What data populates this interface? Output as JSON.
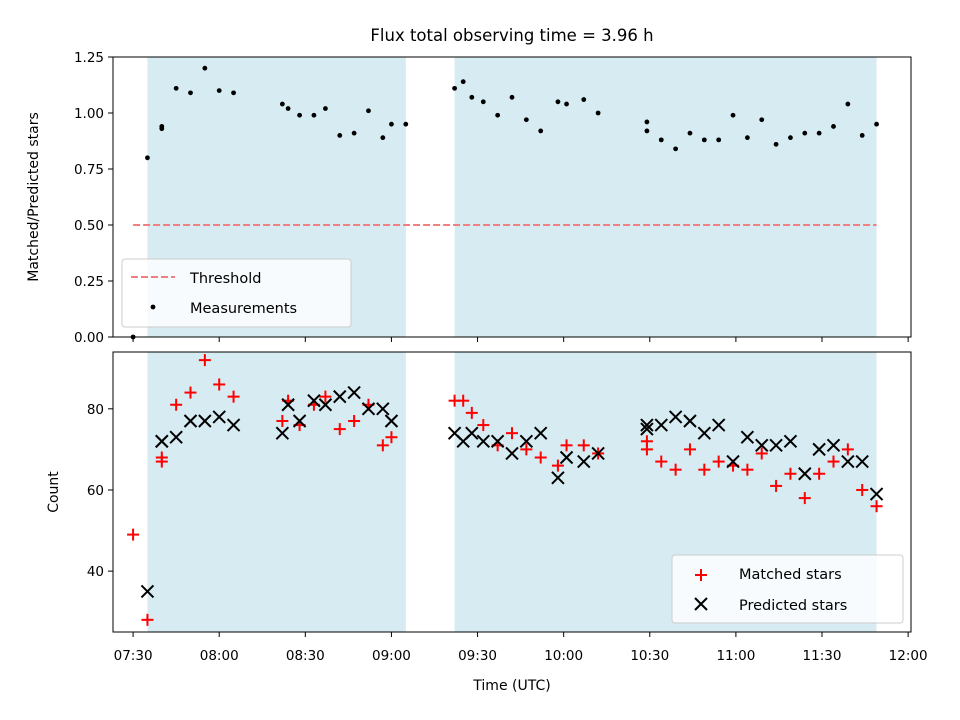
{
  "title": "Flux total observing time = 3.96 h",
  "chart_data": [
    {
      "type": "scatter",
      "panel": "top",
      "ylabel": "Matched/Predicted stars",
      "ylim": [
        0,
        1.25
      ],
      "yticks": [
        "0.00",
        "0.25",
        "0.50",
        "0.75",
        "1.00",
        "1.25"
      ],
      "ytick_values": [
        0,
        0.25,
        0.5,
        0.75,
        1.0,
        1.25
      ],
      "xlim": [
        "07:23",
        "12:01"
      ],
      "shaded_intervals": [
        [
          "07:35",
          "09:05"
        ],
        [
          "09:22",
          "11:49"
        ]
      ],
      "threshold": {
        "name": "Threshold",
        "value": 0.5,
        "x_start": "07:30",
        "x_end": "11:49",
        "color": "#f08080",
        "style": "dashed"
      },
      "series": [
        {
          "name": "Measurements",
          "marker": "dot",
          "color": "#000000",
          "x": [
            "07:30",
            "07:35",
            "07:40",
            "07:40",
            "07:45",
            "07:50",
            "07:55",
            "08:00",
            "08:05",
            "08:22",
            "08:24",
            "08:28",
            "08:33",
            "08:37",
            "08:42",
            "08:47",
            "08:52",
            "08:57",
            "09:00",
            "09:05",
            "09:22",
            "09:25",
            "09:28",
            "09:32",
            "09:37",
            "09:42",
            "09:47",
            "09:52",
            "09:58",
            "10:01",
            "10:07",
            "10:12",
            "10:29",
            "10:29",
            "10:34",
            "10:39",
            "10:44",
            "10:49",
            "10:54",
            "10:59",
            "11:04",
            "11:09",
            "11:14",
            "11:19",
            "11:24",
            "11:29",
            "11:34",
            "11:39",
            "11:44",
            "11:49"
          ],
          "y": [
            0.0,
            0.8,
            0.93,
            0.94,
            1.11,
            1.09,
            1.2,
            1.1,
            1.09,
            1.04,
            1.02,
            0.99,
            0.99,
            1.02,
            0.9,
            0.91,
            1.01,
            0.89,
            0.95,
            0.95,
            1.11,
            1.14,
            1.07,
            1.05,
            0.99,
            1.07,
            0.97,
            0.92,
            1.05,
            1.04,
            1.06,
            1.0,
            0.96,
            0.92,
            0.88,
            0.84,
            0.91,
            0.88,
            0.88,
            0.99,
            0.89,
            0.97,
            0.86,
            0.89,
            0.91,
            0.91,
            0.94,
            1.04,
            0.9,
            0.95
          ]
        }
      ],
      "legend": {
        "position": "lower-left",
        "entries": [
          "Threshold",
          "Measurements"
        ]
      }
    },
    {
      "type": "scatter",
      "panel": "bottom",
      "xlabel": "Time (UTC)",
      "ylabel": "Count",
      "ylim": [
        25,
        94
      ],
      "yticks": [
        "40",
        "60",
        "80"
      ],
      "ytick_values": [
        40,
        60,
        80
      ],
      "xlim": [
        "07:23",
        "12:01"
      ],
      "xticks": [
        "07:30",
        "08:00",
        "08:30",
        "09:00",
        "09:30",
        "10:00",
        "10:30",
        "11:00",
        "11:30",
        "12:00"
      ],
      "shaded_intervals": [
        [
          "07:35",
          "09:05"
        ],
        [
          "09:22",
          "11:49"
        ]
      ],
      "series": [
        {
          "name": "Matched stars",
          "marker": "plus",
          "color": "#ff0000",
          "x": [
            "07:30",
            "07:35",
            "07:40",
            "07:40",
            "07:45",
            "07:50",
            "07:55",
            "08:00",
            "08:05",
            "08:22",
            "08:24",
            "08:28",
            "08:33",
            "08:37",
            "08:42",
            "08:47",
            "08:52",
            "08:57",
            "09:00",
            "09:22",
            "09:25",
            "09:28",
            "09:32",
            "09:37",
            "09:42",
            "09:47",
            "09:52",
            "09:58",
            "10:01",
            "10:07",
            "10:12",
            "10:29",
            "10:29",
            "10:34",
            "10:39",
            "10:44",
            "10:49",
            "10:54",
            "10:59",
            "11:04",
            "11:09",
            "11:14",
            "11:19",
            "11:24",
            "11:29",
            "11:34",
            "11:39",
            "11:44",
            "11:49"
          ],
          "y": [
            49,
            28,
            67,
            68,
            81,
            84,
            92,
            86,
            83,
            77,
            82,
            76,
            81,
            83,
            75,
            77,
            81,
            71,
            73,
            82,
            82,
            79,
            76,
            71,
            74,
            70,
            68,
            66,
            71,
            71,
            69,
            72,
            70,
            67,
            65,
            70,
            65,
            67,
            66,
            65,
            69,
            61,
            64,
            58,
            64,
            67,
            70,
            60,
            56
          ]
        },
        {
          "name": "Predicted stars",
          "marker": "x",
          "color": "#000000",
          "x": [
            "07:35",
            "07:40",
            "07:40",
            "07:45",
            "07:50",
            "07:55",
            "08:00",
            "08:05",
            "08:22",
            "08:24",
            "08:28",
            "08:33",
            "08:37",
            "08:42",
            "08:47",
            "08:52",
            "08:57",
            "09:00",
            "09:22",
            "09:25",
            "09:28",
            "09:32",
            "09:37",
            "09:42",
            "09:47",
            "09:52",
            "09:58",
            "10:01",
            "10:07",
            "10:12",
            "10:29",
            "10:29",
            "10:34",
            "10:39",
            "10:44",
            "10:49",
            "10:54",
            "10:59",
            "11:04",
            "11:09",
            "11:14",
            "11:19",
            "11:24",
            "11:29",
            "11:34",
            "11:39",
            "11:44",
            "11:49"
          ],
          "y": [
            35,
            72,
            72,
            73,
            77,
            77,
            78,
            76,
            74,
            81,
            77,
            82,
            81,
            83,
            84,
            80,
            80,
            77,
            74,
            72,
            74,
            72,
            72,
            69,
            72,
            74,
            63,
            68,
            67,
            69,
            75,
            76,
            76,
            78,
            77,
            74,
            76,
            67,
            73,
            71,
            71,
            72,
            64,
            70,
            71,
            67,
            67,
            59
          ]
        }
      ],
      "legend": {
        "position": "lower-right",
        "entries": [
          "Matched stars",
          "Predicted stars"
        ]
      }
    }
  ],
  "colors": {
    "shade": "#add8e6",
    "threshold": "#f08080",
    "matched": "#ff0000",
    "predicted": "#000000"
  }
}
